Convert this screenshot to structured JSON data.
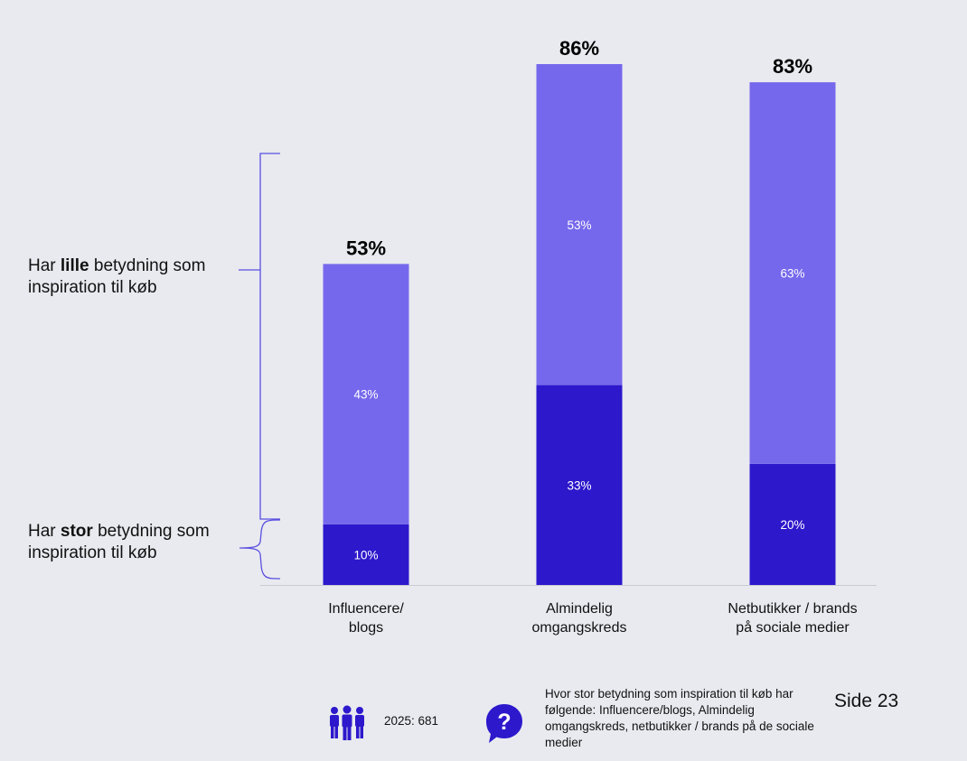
{
  "legend": {
    "lille_pre": "Har ",
    "lille_bold": "lille",
    "lille_post": " betydning som inspiration til køb",
    "stor_pre": "Har ",
    "stor_bold": "stor",
    "stor_post": " betydning som inspiration til køb"
  },
  "footer": {
    "count": "2025: 681",
    "question": "Hvor stor betydning som inspiration til køb har følgende: Influencere/blogs, Almindelig omgangskreds, netbutikker / brands på de sociale medier",
    "page_label": "Side  23",
    "people_icon": "people-group-icon",
    "question_icon": "question-bubble-icon"
  },
  "colors": {
    "stor": "#2d18cc",
    "lille": "#7668ec",
    "axis": "#c9cbd3",
    "bracket": "#5a4fe0",
    "background": "#e8eaef"
  },
  "chart_data": {
    "type": "bar",
    "stacked": true,
    "categories": [
      [
        "Influencere/",
        "blogs"
      ],
      [
        "Almindelig",
        "omgangskreds"
      ],
      [
        "Netbutikker / brands",
        "på sociale medier"
      ]
    ],
    "series": [
      {
        "name": "Har stor betydning som inspiration til køb",
        "values": [
          10,
          33,
          20
        ],
        "labels": [
          "10%",
          "33%",
          "20%"
        ]
      },
      {
        "name": "Har lille betydning som inspiration til køb",
        "values": [
          43,
          53,
          63
        ],
        "labels": [
          "43%",
          "53%",
          "63%"
        ]
      }
    ],
    "totals": [
      53,
      86,
      83
    ],
    "total_labels": [
      "53%",
      "86%",
      "83%"
    ],
    "ylim": [
      0,
      86
    ],
    "grid": false,
    "legend_position": "left"
  }
}
